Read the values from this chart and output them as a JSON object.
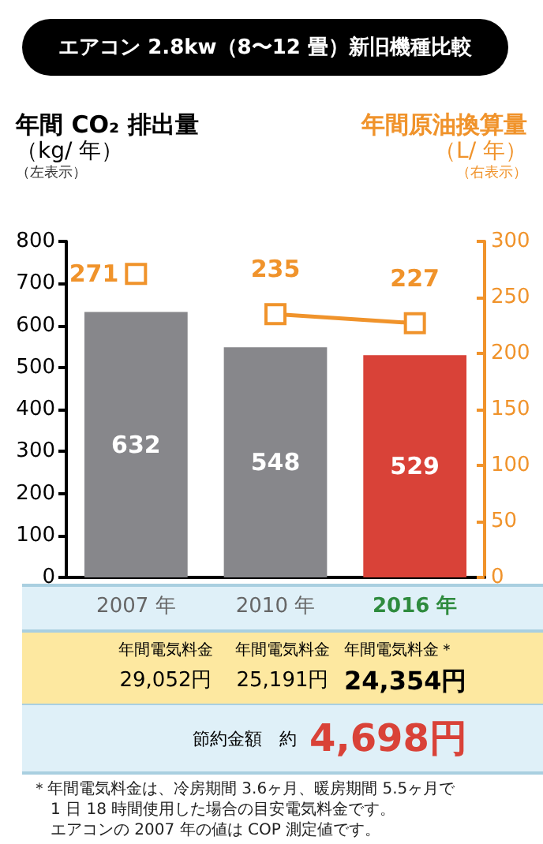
{
  "chart_data": {
    "type": "bar",
    "title": "エアコン 2.8kw（8〜12 畳）新旧機種比較",
    "ylabel": "年間 CO₂ 排出量（kg/ 年）（左表示）",
    "y2label": "年間原油換算量（L/ 年）（右表示）",
    "categories": [
      "2007 年",
      "2010 年",
      "2016 年"
    ],
    "series": [
      {
        "values": [
          632,
          548,
          529
        ],
        "colors": [
          "#87878b",
          "#87878b",
          "#d94238"
        ]
      },
      {
        "type": "line",
        "axis": "y2",
        "color": "#f0932b",
        "values": [
          271,
          null,
          null
        ]
      },
      {
        "type": "line",
        "axis": "y2",
        "color": "#f0932b",
        "values": [
          null,
          235,
          227
        ]
      }
    ],
    "ylim": [
      0,
      800
    ],
    "yticks": [
      0,
      100,
      200,
      300,
      400,
      500,
      600,
      700,
      800
    ],
    "y2lim": [
      0,
      300
    ],
    "y2ticks": [
      0,
      50,
      100,
      150,
      200,
      250,
      300
    ],
    "data_labels": true,
    "marker": "square",
    "line_style": "solid",
    "grid": false,
    "annotations": [
      "年間電気料金",
      "年間電気料金",
      "年間電気料金＊",
      "29,052円",
      "25,191円",
      "24,354円",
      "節約金額　約",
      "4,698円",
      "＊年間電気料金は、冷房期間 3.6ヶ月、暖房期間 5.5ヶ月で",
      "1 日 18 時間使用した場合の目安電気料金です。",
      "エアコンの 2007 年の値は COP 測定値です。"
    ]
  }
}
